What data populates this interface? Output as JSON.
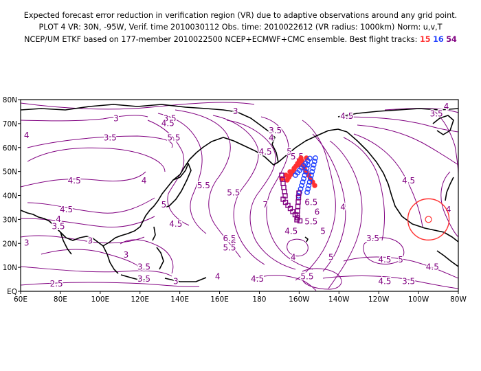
{
  "header": {
    "line1": "Expected forecast error reduction in verification region (VR) due to adaptive observations around any grid point.",
    "line2": "PLOT 4 VR: 30N, -95W, Verif. time 2010030112 Obs. time: 2010022612 (VR radius: 1000km) Norm: u,v,T",
    "line3_prefix": "NCEP/UM ETKF based on 177-member 2010022500 NCEP+ECMWF+CMC ensemble. Best flight tracks:",
    "tracks": [
      {
        "id": "15",
        "color": "#ff3030"
      },
      {
        "id": "16",
        "color": "#2040ff"
      },
      {
        "id": "54",
        "color": "#800080"
      }
    ]
  },
  "map": {
    "lon_labels": [
      "60E",
      "80E",
      "100E",
      "120E",
      "140E",
      "160E",
      "180",
      "160W",
      "140W",
      "120W",
      "100W",
      "80W"
    ],
    "lat_labels": [
      "80N",
      "70N",
      "60N",
      "50N",
      "40N",
      "30N",
      "20N",
      "10N",
      "EQ"
    ],
    "lon_range": [
      60,
      280
    ],
    "lat_range": [
      0,
      80
    ],
    "contour_color": "#800080",
    "land_color": "#000000",
    "verification_region": {
      "center_lat": 30,
      "center_lon": -95,
      "radius_km": 1000,
      "color": "#ff3030"
    },
    "contour_labels": [
      {
        "text": "3",
        "lat": 71,
        "lon": 108
      },
      {
        "text": "3.5",
        "lat": 63,
        "lon": 105
      },
      {
        "text": "4",
        "lat": 64,
        "lon": 63
      },
      {
        "text": "4.5",
        "lat": 45,
        "lon": 87
      },
      {
        "text": "4.5",
        "lat": 33,
        "lon": 83
      },
      {
        "text": "4",
        "lat": 29,
        "lon": 79
      },
      {
        "text": "3.5",
        "lat": 26,
        "lon": 79
      },
      {
        "text": "3",
        "lat": 19,
        "lon": 63
      },
      {
        "text": "3",
        "lat": 20,
        "lon": 95
      },
      {
        "text": "4",
        "lat": 45,
        "lon": 122
      },
      {
        "text": "3",
        "lat": 14,
        "lon": 113
      },
      {
        "text": "3.5",
        "lat": 9,
        "lon": 122
      },
      {
        "text": "3.5",
        "lat": 4,
        "lon": 122
      },
      {
        "text": "3",
        "lat": 3,
        "lon": 138
      },
      {
        "text": "2.5",
        "lat": 2,
        "lon": 78
      },
      {
        "text": "3.5",
        "lat": 71,
        "lon": 135
      },
      {
        "text": "4.5",
        "lat": 69,
        "lon": 134
      },
      {
        "text": "5.5",
        "lat": 63,
        "lon": 137
      },
      {
        "text": "3",
        "lat": 74,
        "lon": 168
      },
      {
        "text": "3.5",
        "lat": 66,
        "lon": 188
      },
      {
        "text": "4",
        "lat": 63,
        "lon": 186
      },
      {
        "text": "4.5",
        "lat": 57,
        "lon": 183
      },
      {
        "text": "5",
        "lat": 57,
        "lon": 195
      },
      {
        "text": "5.5",
        "lat": 55,
        "lon": 199
      },
      {
        "text": "5.5",
        "lat": 43,
        "lon": 152
      },
      {
        "text": "5.5",
        "lat": 40,
        "lon": 167
      },
      {
        "text": "4.5",
        "lat": 27,
        "lon": 138
      },
      {
        "text": "5",
        "lat": 35,
        "lon": 132
      },
      {
        "text": "6.5",
        "lat": 21,
        "lon": 165
      },
      {
        "text": "6",
        "lat": 19,
        "lon": 167
      },
      {
        "text": "5.5",
        "lat": 17,
        "lon": 165
      },
      {
        "text": "7",
        "lat": 35,
        "lon": 183
      },
      {
        "text": "4",
        "lat": 13,
        "lon": 197
      },
      {
        "text": "4.5",
        "lat": 4,
        "lon": 179
      },
      {
        "text": "4",
        "lat": 5,
        "lon": 159
      },
      {
        "text": "5.5",
        "lat": 5,
        "lon": 204
      },
      {
        "text": "5",
        "lat": 13,
        "lon": 216
      },
      {
        "text": "4.5",
        "lat": 12,
        "lon": 243
      },
      {
        "text": "5",
        "lat": 12,
        "lon": 251
      },
      {
        "text": "4.5",
        "lat": 3,
        "lon": 243
      },
      {
        "text": "3.5",
        "lat": 3,
        "lon": 255
      },
      {
        "text": "4.5",
        "lat": 9,
        "lon": 267
      },
      {
        "text": "6.5",
        "lat": 36,
        "lon": 206
      },
      {
        "text": "6",
        "lat": 32,
        "lon": 209
      },
      {
        "text": "5.5",
        "lat": 28,
        "lon": 206
      },
      {
        "text": "5",
        "lat": 24,
        "lon": 212
      },
      {
        "text": "4.5",
        "lat": 24,
        "lon": 196
      },
      {
        "text": "4",
        "lat": 34,
        "lon": 222
      },
      {
        "text": "3.5",
        "lat": 21,
        "lon": 237
      },
      {
        "text": "4.5",
        "lat": 45,
        "lon": 255
      },
      {
        "text": "4.5",
        "lat": 72,
        "lon": 224
      },
      {
        "text": "4",
        "lat": 76,
        "lon": 274
      },
      {
        "text": "3.5",
        "lat": 73,
        "lon": 269
      },
      {
        "text": "4",
        "lat": 33,
        "lon": 275
      }
    ]
  }
}
